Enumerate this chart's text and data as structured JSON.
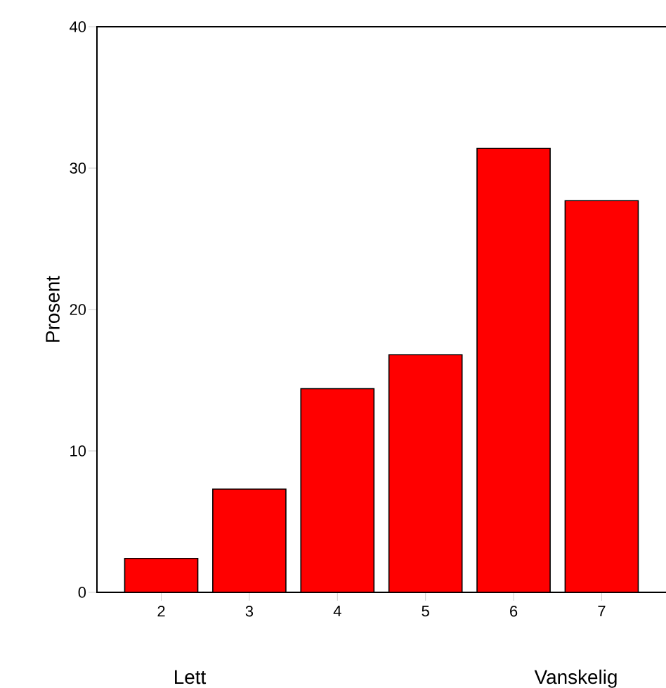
{
  "chart_data": {
    "type": "bar",
    "ylabel": "Prosent",
    "categories": [
      "2",
      "3",
      "4",
      "5",
      "6",
      "7"
    ],
    "values": [
      2.4,
      7.3,
      14.4,
      16.8,
      31.4,
      27.7
    ],
    "color": "#ff0000",
    "ylim": [
      0,
      40
    ],
    "yticks": [
      0,
      10,
      20,
      30,
      40
    ],
    "annotations": [
      "Lett",
      "Vanskelig"
    ]
  }
}
